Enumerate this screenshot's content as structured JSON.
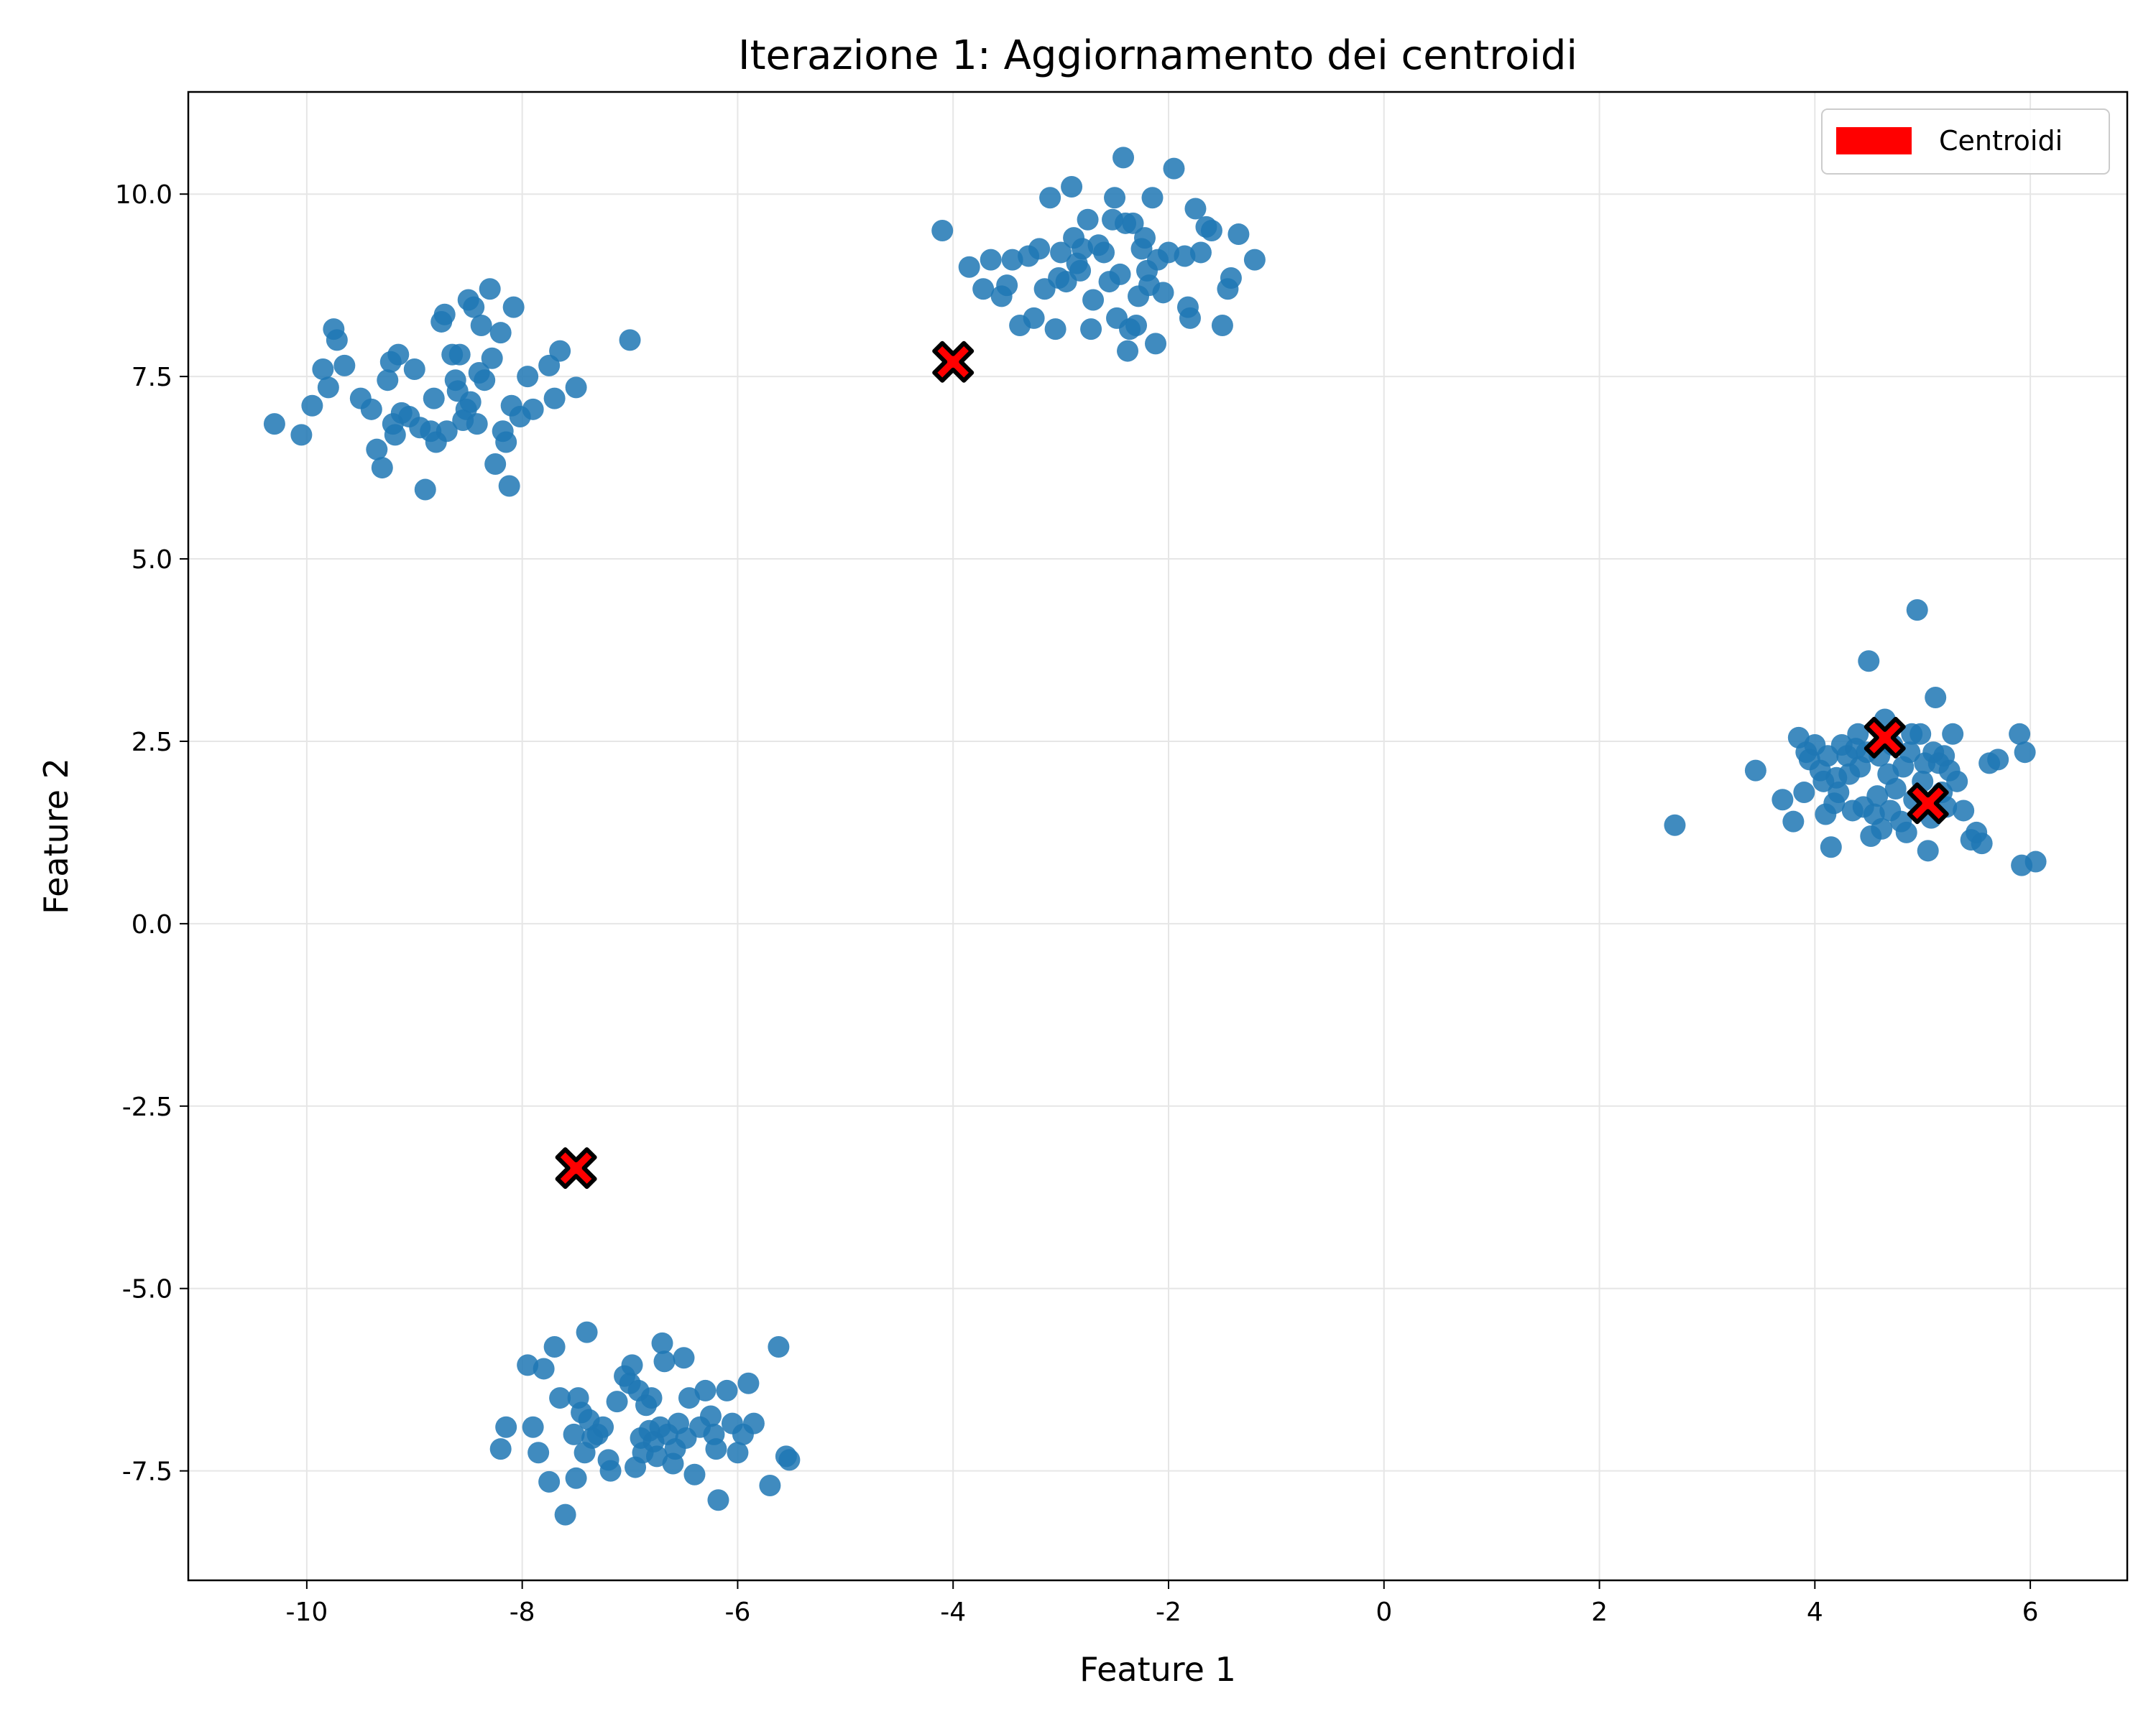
{
  "chart_data": {
    "type": "scatter",
    "title": "Iterazione 1: Aggiornamento dei centroidi",
    "xlabel": "Feature 1",
    "ylabel": "Feature 2",
    "xlim": [
      -11.1,
      6.9
    ],
    "ylim": [
      -9.0,
      11.4
    ],
    "grid": true,
    "legend_position": "top-right",
    "x_ticks": [
      -10,
      -8,
      -6,
      -4,
      -2,
      0,
      2,
      4,
      6
    ],
    "x_tick_labels": [
      "-10",
      "-8",
      "-6",
      "-4",
      "-2",
      "0",
      "2",
      "4",
      "6"
    ],
    "y_ticks": [
      -7.5,
      -5.0,
      -2.5,
      0.0,
      2.5,
      5.0,
      7.5,
      10.0
    ],
    "y_tick_labels": [
      "-7.5",
      "-5.0",
      "-2.5",
      "0.0",
      "2.5",
      "5.0",
      "7.5",
      "10.0"
    ],
    "colors": {
      "points": "#1f77b4",
      "centroids": "#ff0000",
      "centroid_edge": "#000000",
      "grid": "#e6e6e6"
    },
    "legend": [
      {
        "label": "Centroidi",
        "color": "#ff0000"
      }
    ],
    "series": [
      {
        "values": [
          [
            -10.3,
            6.85
          ],
          [
            -10.05,
            6.7
          ],
          [
            -9.95,
            7.1
          ],
          [
            -9.85,
            7.6
          ],
          [
            -9.8,
            7.35
          ],
          [
            -9.75,
            8.15
          ],
          [
            -9.72,
            8.0
          ],
          [
            -9.65,
            7.65
          ],
          [
            -9.5,
            7.2
          ],
          [
            -9.4,
            7.05
          ],
          [
            -9.35,
            6.5
          ],
          [
            -9.3,
            6.25
          ],
          [
            -9.25,
            7.45
          ],
          [
            -9.22,
            7.7
          ],
          [
            -9.2,
            6.85
          ],
          [
            -9.18,
            6.7
          ],
          [
            -9.15,
            7.8
          ],
          [
            -9.12,
            7.0
          ],
          [
            -9.05,
            6.95
          ],
          [
            -9.0,
            7.6
          ],
          [
            -8.95,
            6.8
          ],
          [
            -8.9,
            5.95
          ],
          [
            -8.85,
            6.75
          ],
          [
            -8.82,
            7.2
          ],
          [
            -8.8,
            6.6
          ],
          [
            -8.75,
            8.25
          ],
          [
            -8.72,
            8.35
          ],
          [
            -8.7,
            6.75
          ],
          [
            -8.65,
            7.8
          ],
          [
            -8.62,
            7.45
          ],
          [
            -8.6,
            7.3
          ],
          [
            -8.58,
            7.8
          ],
          [
            -8.55,
            6.9
          ],
          [
            -8.52,
            7.05
          ],
          [
            -8.5,
            8.55
          ],
          [
            -8.48,
            7.15
          ],
          [
            -8.45,
            8.45
          ],
          [
            -8.42,
            6.85
          ],
          [
            -8.4,
            7.55
          ],
          [
            -8.38,
            8.2
          ],
          [
            -8.35,
            7.45
          ],
          [
            -8.3,
            8.7
          ],
          [
            -8.28,
            7.75
          ],
          [
            -8.25,
            6.3
          ],
          [
            -8.2,
            8.1
          ],
          [
            -8.18,
            6.75
          ],
          [
            -8.15,
            6.6
          ],
          [
            -8.12,
            6.0
          ],
          [
            -8.1,
            7.1
          ],
          [
            -8.08,
            8.45
          ],
          [
            -8.02,
            6.95
          ],
          [
            -7.95,
            7.5
          ],
          [
            -7.9,
            7.05
          ],
          [
            -7.75,
            7.65
          ],
          [
            -7.7,
            7.2
          ],
          [
            -7.65,
            7.85
          ],
          [
            -7.5,
            7.35
          ],
          [
            -7.0,
            8.0
          ]
        ]
      },
      {
        "values": [
          [
            -4.1,
            9.5
          ],
          [
            -3.85,
            9.0
          ],
          [
            -3.72,
            8.7
          ],
          [
            -3.65,
            9.1
          ],
          [
            -3.55,
            8.6
          ],
          [
            -3.5,
            8.75
          ],
          [
            -3.45,
            9.1
          ],
          [
            -3.38,
            8.2
          ],
          [
            -3.3,
            9.15
          ],
          [
            -3.25,
            8.3
          ],
          [
            -3.2,
            9.25
          ],
          [
            -3.15,
            8.7
          ],
          [
            -3.1,
            9.95
          ],
          [
            -3.05,
            8.15
          ],
          [
            -3.02,
            8.85
          ],
          [
            -3.0,
            9.2
          ],
          [
            -2.95,
            8.8
          ],
          [
            -2.9,
            10.1
          ],
          [
            -2.88,
            9.4
          ],
          [
            -2.85,
            9.05
          ],
          [
            -2.82,
            8.95
          ],
          [
            -2.8,
            9.25
          ],
          [
            -2.75,
            9.65
          ],
          [
            -2.72,
            8.15
          ],
          [
            -2.7,
            8.55
          ],
          [
            -2.65,
            9.3
          ],
          [
            -2.6,
            9.2
          ],
          [
            -2.55,
            8.8
          ],
          [
            -2.52,
            9.65
          ],
          [
            -2.5,
            9.95
          ],
          [
            -2.48,
            8.3
          ],
          [
            -2.45,
            8.9
          ],
          [
            -2.42,
            10.5
          ],
          [
            -2.4,
            9.6
          ],
          [
            -2.38,
            7.85
          ],
          [
            -2.36,
            8.15
          ],
          [
            -2.33,
            9.6
          ],
          [
            -2.3,
            8.2
          ],
          [
            -2.28,
            8.6
          ],
          [
            -2.25,
            9.25
          ],
          [
            -2.22,
            9.4
          ],
          [
            -2.2,
            8.95
          ],
          [
            -2.18,
            8.75
          ],
          [
            -2.15,
            9.95
          ],
          [
            -2.12,
            7.95
          ],
          [
            -2.1,
            9.1
          ],
          [
            -2.05,
            8.65
          ],
          [
            -2.0,
            9.2
          ],
          [
            -1.95,
            10.35
          ],
          [
            -1.85,
            9.15
          ],
          [
            -1.82,
            8.45
          ],
          [
            -1.8,
            8.3
          ],
          [
            -1.75,
            9.8
          ],
          [
            -1.7,
            9.2
          ],
          [
            -1.65,
            9.55
          ],
          [
            -1.6,
            9.5
          ],
          [
            -1.5,
            8.2
          ],
          [
            -1.45,
            8.7
          ],
          [
            -1.42,
            8.85
          ],
          [
            -1.35,
            9.45
          ],
          [
            -1.2,
            9.1
          ]
        ]
      },
      {
        "values": [
          [
            -8.2,
            -7.2
          ],
          [
            -8.15,
            -6.9
          ],
          [
            -7.95,
            -6.05
          ],
          [
            -7.9,
            -6.9
          ],
          [
            -7.85,
            -7.25
          ],
          [
            -7.8,
            -6.1
          ],
          [
            -7.75,
            -7.65
          ],
          [
            -7.7,
            -5.8
          ],
          [
            -7.65,
            -6.5
          ],
          [
            -7.6,
            -8.1
          ],
          [
            -7.52,
            -7.0
          ],
          [
            -7.5,
            -7.6
          ],
          [
            -7.48,
            -6.5
          ],
          [
            -7.45,
            -6.7
          ],
          [
            -7.42,
            -7.25
          ],
          [
            -7.4,
            -5.6
          ],
          [
            -7.38,
            -6.8
          ],
          [
            -7.35,
            -7.05
          ],
          [
            -7.3,
            -7.0
          ],
          [
            -7.25,
            -6.9
          ],
          [
            -7.2,
            -7.35
          ],
          [
            -7.18,
            -7.5
          ],
          [
            -7.12,
            -6.55
          ],
          [
            -7.05,
            -6.2
          ],
          [
            -7.0,
            -6.3
          ],
          [
            -6.98,
            -6.05
          ],
          [
            -6.95,
            -7.45
          ],
          [
            -6.92,
            -6.4
          ],
          [
            -6.9,
            -7.05
          ],
          [
            -6.88,
            -7.25
          ],
          [
            -6.85,
            -6.6
          ],
          [
            -6.82,
            -6.95
          ],
          [
            -6.8,
            -6.5
          ],
          [
            -6.78,
            -7.1
          ],
          [
            -6.75,
            -7.3
          ],
          [
            -6.72,
            -6.9
          ],
          [
            -6.7,
            -5.75
          ],
          [
            -6.68,
            -6.0
          ],
          [
            -6.65,
            -7.0
          ],
          [
            -6.6,
            -7.4
          ],
          [
            -6.58,
            -7.2
          ],
          [
            -6.55,
            -6.85
          ],
          [
            -6.5,
            -5.95
          ],
          [
            -6.48,
            -7.05
          ],
          [
            -6.45,
            -6.5
          ],
          [
            -6.4,
            -7.55
          ],
          [
            -6.35,
            -6.9
          ],
          [
            -6.3,
            -6.4
          ],
          [
            -6.25,
            -6.75
          ],
          [
            -6.22,
            -7.0
          ],
          [
            -6.2,
            -7.2
          ],
          [
            -6.18,
            -7.9
          ],
          [
            -6.1,
            -6.4
          ],
          [
            -6.05,
            -6.85
          ],
          [
            -6.0,
            -7.25
          ],
          [
            -5.95,
            -7.0
          ],
          [
            -5.9,
            -6.3
          ],
          [
            -5.85,
            -6.85
          ],
          [
            -5.7,
            -7.7
          ],
          [
            -5.62,
            -5.8
          ],
          [
            -5.55,
            -7.3
          ],
          [
            -5.52,
            -7.35
          ]
        ]
      },
      {
        "values": [
          [
            2.7,
            1.35
          ],
          [
            3.45,
            2.1
          ],
          [
            3.7,
            1.7
          ],
          [
            3.8,
            1.4
          ],
          [
            3.85,
            2.55
          ],
          [
            3.9,
            1.8
          ],
          [
            3.92,
            2.35
          ],
          [
            3.95,
            2.25
          ],
          [
            4.0,
            2.45
          ],
          [
            4.05,
            2.1
          ],
          [
            4.08,
            1.95
          ],
          [
            4.1,
            1.5
          ],
          [
            4.12,
            2.3
          ],
          [
            4.15,
            1.05
          ],
          [
            4.18,
            1.65
          ],
          [
            4.2,
            2.0
          ],
          [
            4.22,
            1.8
          ],
          [
            4.25,
            2.45
          ],
          [
            4.3,
            2.3
          ],
          [
            4.32,
            2.05
          ],
          [
            4.35,
            1.55
          ],
          [
            4.38,
            2.4
          ],
          [
            4.4,
            2.6
          ],
          [
            4.42,
            2.15
          ],
          [
            4.45,
            1.6
          ],
          [
            4.48,
            2.35
          ],
          [
            4.5,
            3.6
          ],
          [
            4.52,
            1.2
          ],
          [
            4.55,
            1.5
          ],
          [
            4.58,
            1.75
          ],
          [
            4.6,
            2.3
          ],
          [
            4.62,
            1.3
          ],
          [
            4.65,
            2.8
          ],
          [
            4.68,
            2.05
          ],
          [
            4.7,
            1.55
          ],
          [
            4.72,
            2.45
          ],
          [
            4.75,
            1.85
          ],
          [
            4.8,
            1.4
          ],
          [
            4.82,
            2.15
          ],
          [
            4.85,
            1.25
          ],
          [
            4.88,
            2.35
          ],
          [
            4.9,
            2.6
          ],
          [
            4.92,
            1.7
          ],
          [
            4.95,
            4.3
          ],
          [
            4.98,
            2.6
          ],
          [
            5.0,
            1.95
          ],
          [
            5.02,
            2.2
          ],
          [
            5.05,
            1.0
          ],
          [
            5.08,
            1.45
          ],
          [
            5.1,
            2.35
          ],
          [
            5.12,
            3.1
          ],
          [
            5.15,
            2.2
          ],
          [
            5.18,
            1.8
          ],
          [
            5.2,
            2.3
          ],
          [
            5.22,
            1.6
          ],
          [
            5.25,
            2.1
          ],
          [
            5.28,
            2.6
          ],
          [
            5.32,
            1.95
          ],
          [
            5.38,
            1.55
          ],
          [
            5.45,
            1.15
          ],
          [
            5.5,
            1.25
          ],
          [
            5.55,
            1.1
          ],
          [
            5.62,
            2.2
          ],
          [
            5.7,
            2.25
          ],
          [
            5.9,
            2.6
          ],
          [
            5.92,
            0.8
          ],
          [
            5.95,
            2.35
          ],
          [
            6.05,
            0.85
          ]
        ]
      }
    ],
    "centroids": [
      [
        -7.5,
        -3.35
      ],
      [
        -4.0,
        7.7
      ],
      [
        4.65,
        2.55
      ],
      [
        5.05,
        1.65
      ]
    ]
  }
}
